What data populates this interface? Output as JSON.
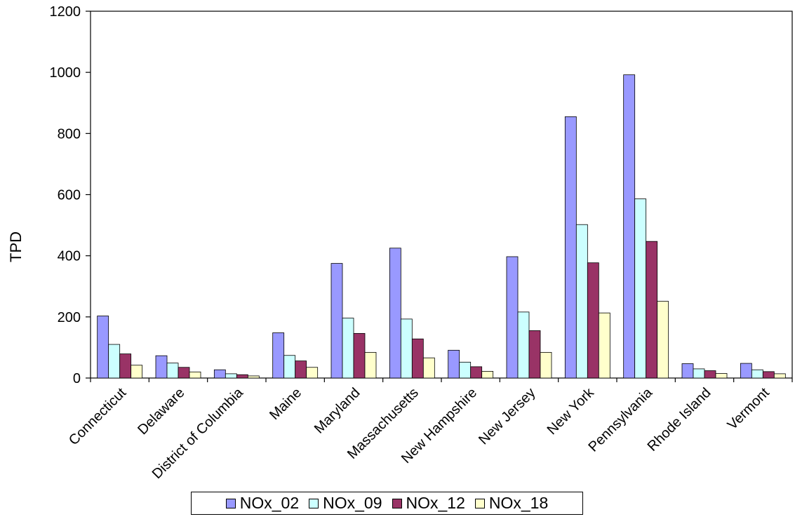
{
  "chart_data": {
    "type": "bar",
    "title": "",
    "xlabel": "",
    "ylabel": "TPD",
    "ylim": [
      0,
      1200
    ],
    "yticks": [
      0,
      200,
      400,
      600,
      800,
      1000,
      1200
    ],
    "categories": [
      "Connecticut",
      "Delaware",
      "District of Columbia",
      "Maine",
      "Maryland",
      "Massachusetts",
      "New Hampshire",
      "New Jersey",
      "New York",
      "Pennsylvania",
      "Rhode Island",
      "Vermont"
    ],
    "category_labels_shown": [
      "Connecticut",
      "Delaware",
      "District of Columbia",
      "Maine",
      "Maryland",
      "Massachusetts",
      "New Hampshire",
      "New Jersey",
      "New York",
      "Pennsylvania",
      "Rhode Island",
      "Vermont"
    ],
    "series": [
      {
        "name": "NOx_02",
        "color": "#9999ff",
        "values": [
          203,
          73,
          27,
          148,
          375,
          425,
          91,
          397,
          855,
          992,
          47,
          48
        ]
      },
      {
        "name": "NOx_09",
        "color": "#ccffff",
        "values": [
          110,
          49,
          14,
          74,
          196,
          193,
          52,
          216,
          502,
          586,
          30,
          27
        ]
      },
      {
        "name": "NOx_12",
        "color": "#993366",
        "values": [
          79,
          35,
          11,
          56,
          146,
          128,
          37,
          155,
          377,
          447,
          24,
          21
        ]
      },
      {
        "name": "NOx_18",
        "color": "#ffffcc",
        "values": [
          42,
          20,
          7,
          35,
          84,
          66,
          22,
          84,
          213,
          251,
          15,
          14
        ]
      }
    ],
    "grid": false,
    "legend_position": "bottom"
  }
}
